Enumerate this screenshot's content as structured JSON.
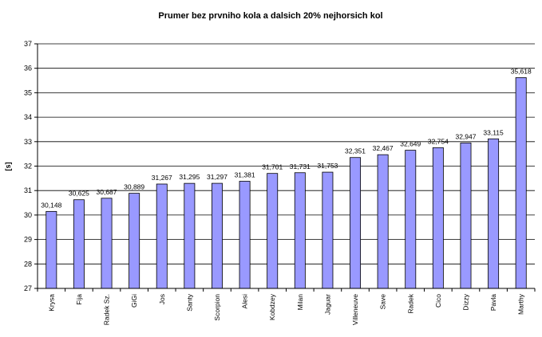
{
  "chart_data": {
    "type": "bar",
    "title": "Prumer bez prvniho kola a dalsich 20% nejhorsich kol",
    "xlabel": "",
    "ylabel": "[s]",
    "ylim": [
      27,
      37
    ],
    "yticks": [
      "27",
      "28",
      "29",
      "30",
      "31",
      "32",
      "33",
      "34",
      "35",
      "36",
      "37"
    ],
    "grid": "horizontal",
    "legend": "none",
    "bar_color": "#9999ff",
    "categories": [
      "Krysa",
      "Fija",
      "Radek Sz.",
      "GiGi",
      "Jos",
      "Santy",
      "Scorpion",
      "Alesi",
      "Kobdzey",
      "Milan",
      "Jaguar",
      "Villeneuve",
      "Save",
      "Radek",
      "Cico",
      "Dizzy",
      "Pavla",
      "Marthy"
    ],
    "values": [
      30.148,
      30.625,
      30.687,
      30.889,
      31.267,
      31.295,
      31.297,
      31.381,
      31.701,
      31.731,
      31.753,
      32.351,
      32.467,
      32.649,
      32.754,
      32.947,
      33.115,
      35.618
    ],
    "data_labels": [
      "30,148",
      "30,625",
      "30,687",
      "30,889",
      "31,267",
      "31,295",
      "31,297",
      "31,381",
      "31,701",
      "31,731",
      "31,753",
      "32,351",
      "32,467",
      "32,649",
      "32,754",
      "32,947",
      "33,115",
      "35,618"
    ]
  }
}
